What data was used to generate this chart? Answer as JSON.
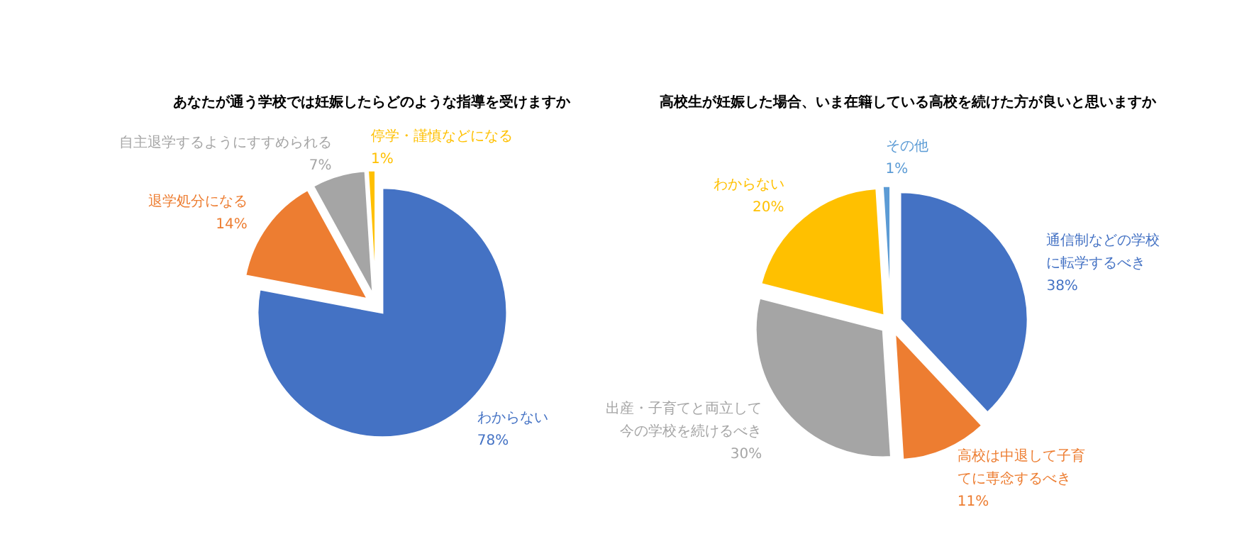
{
  "chart_data": [
    {
      "type": "pie",
      "title": "あなたが通う学校では妊娠したらどのような指導を受けますか",
      "categories": [
        "わからない",
        "退学処分になる",
        "自主退学するようにすすめられる",
        "停学・謹慎などになる"
      ],
      "values": [
        78,
        14,
        7,
        1
      ],
      "value_labels": [
        "78%",
        "14%",
        "7%",
        "1%"
      ],
      "colors": [
        "#4472c4",
        "#ed7d31",
        "#a5a5a5",
        "#ffc000"
      ]
    },
    {
      "type": "pie",
      "title": "高校生が妊娠した場合、いま在籍している高校を続けた方が良いと思いますか",
      "categories": [
        "通信制などの学校に転学するべき",
        "高校は中退して子育てに専念するべき",
        "出産・子育てと両立して今の学校を続けるべき",
        "わからない",
        "その他"
      ],
      "values": [
        38,
        11,
        30,
        20,
        1
      ],
      "value_labels": [
        "38%",
        "11%",
        "30%",
        "20%",
        "1%"
      ],
      "colors": [
        "#4472c4",
        "#ed7d31",
        "#a5a5a5",
        "#ffc000",
        "#5b9bd5"
      ]
    }
  ]
}
